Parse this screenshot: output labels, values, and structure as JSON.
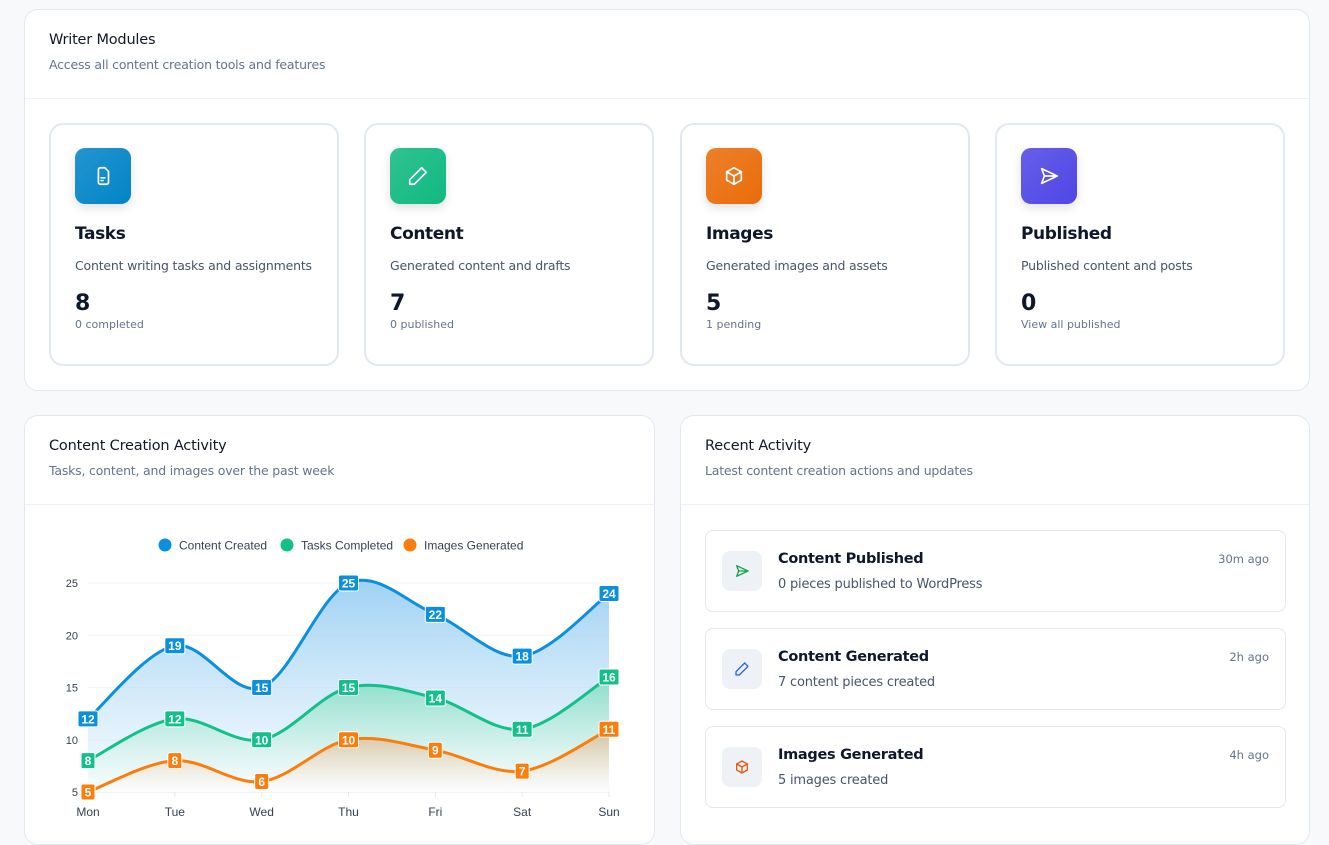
{
  "modules": {
    "title": "Writer Modules",
    "subtitle": "Access all content creation tools and features",
    "items": [
      {
        "title": "Tasks",
        "desc": "Content writing tasks and assignments",
        "count": "8",
        "sub": "0 completed",
        "icon": "file-icon",
        "color": "#0284c7"
      },
      {
        "title": "Content",
        "desc": "Generated content and drafts",
        "count": "7",
        "sub": "0 published",
        "icon": "pencil-icon",
        "color": "#10b981"
      },
      {
        "title": "Images",
        "desc": "Generated images and assets",
        "count": "5",
        "sub": "1 pending",
        "icon": "box-icon",
        "color": "#ea6c0a"
      },
      {
        "title": "Published",
        "desc": "Published content and posts",
        "count": "0",
        "sub": "View all published",
        "icon": "send-icon",
        "color": "#4f46e5"
      }
    ]
  },
  "activity_chart": {
    "title": "Content Creation Activity",
    "subtitle": "Tasks, content, and images over the past week"
  },
  "chart_data": {
    "type": "area",
    "categories": [
      "Mon",
      "Tue",
      "Wed",
      "Thu",
      "Fri",
      "Sat",
      "Sun"
    ],
    "ylim": [
      5,
      25
    ],
    "yticks": [
      5,
      10,
      15,
      20,
      25
    ],
    "legend": "top",
    "grid": true,
    "series": [
      {
        "name": "Content Created",
        "values": [
          12,
          19,
          15,
          25,
          22,
          18,
          24
        ],
        "color": "#0b8fdf"
      },
      {
        "name": "Tasks Completed",
        "values": [
          8,
          12,
          10,
          15,
          14,
          11,
          16
        ],
        "color": "#14c08a"
      },
      {
        "name": "Images Generated",
        "values": [
          5,
          8,
          6,
          10,
          9,
          7,
          11
        ],
        "color": "#fb7d0c"
      }
    ]
  },
  "recent": {
    "title": "Recent Activity",
    "subtitle": "Latest content creation actions and updates",
    "items": [
      {
        "title": "Content Published",
        "desc": "0 pieces published to WordPress",
        "time": "30m ago",
        "icon": "send-icon",
        "color": "#16a34a"
      },
      {
        "title": "Content Generated",
        "desc": "7 content pieces created",
        "time": "2h ago",
        "icon": "pencil-icon",
        "color": "#2563eb"
      },
      {
        "title": "Images Generated",
        "desc": "5 images created",
        "time": "4h ago",
        "icon": "box-icon",
        "color": "#ea580c"
      }
    ]
  }
}
